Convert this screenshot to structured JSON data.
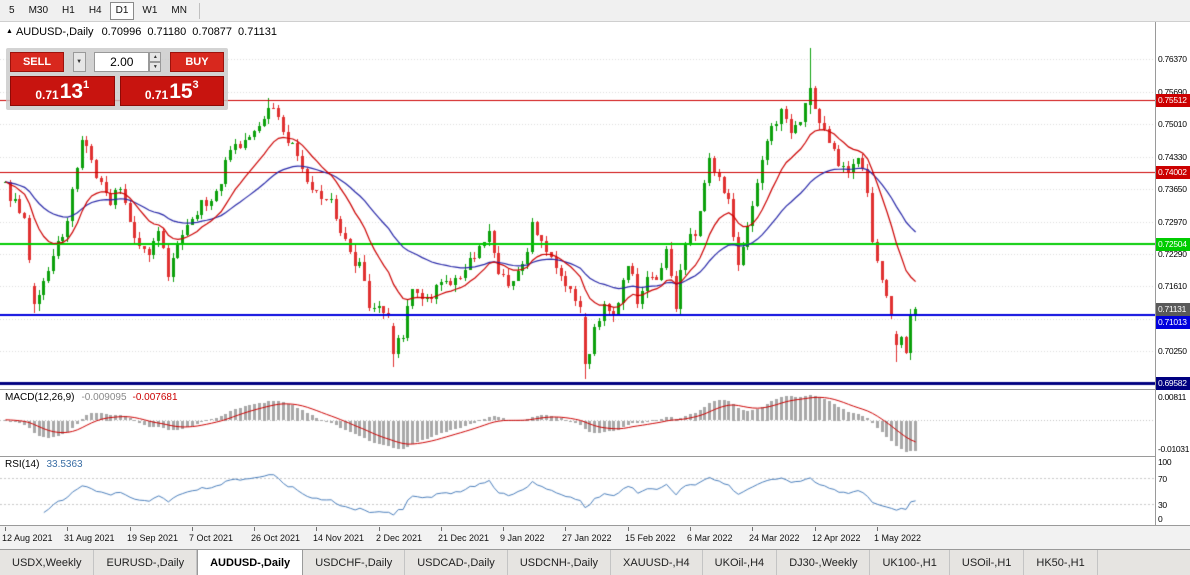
{
  "toolbar": {
    "timeframes": [
      {
        "label": "5",
        "active": false
      },
      {
        "label": "M30",
        "active": false
      },
      {
        "label": "H1",
        "active": false
      },
      {
        "label": "H4",
        "active": false
      },
      {
        "label": "D1",
        "active": true
      },
      {
        "label": "W1",
        "active": false
      },
      {
        "label": "MN",
        "active": false
      }
    ]
  },
  "icons": {
    "symbol_marker": "▲",
    "dropdown_arrow": "▼",
    "spinner_up": "▲",
    "spinner_down": "▼"
  },
  "chart": {
    "title": {
      "name": "AUDUSD-,Daily",
      "open": "0.70996",
      "high": "0.71180",
      "low": "0.70877",
      "close": "0.71131"
    },
    "trade_widget": {
      "sell_label": "SELL",
      "buy_label": "BUY",
      "volume": "2.00",
      "sell_price": {
        "prefix": "0.71",
        "big": "13",
        "sup": "1"
      },
      "buy_price": {
        "prefix": "0.71",
        "big": "15",
        "sup": "3"
      }
    }
  },
  "chart_data": {
    "type": "candlestick",
    "symbol": "AUDUSD",
    "period": "Daily",
    "last_candle": {
      "open": 0.70996,
      "high": 0.7118,
      "low": 0.70877,
      "close": 0.71131
    },
    "num_candles": 191,
    "price_range": {
      "top": 0.77146,
      "bottom": 0.69464
    },
    "price_axis_labels": [
      "0.76370",
      "0.75690",
      "0.75010",
      "0.74330",
      "0.73650",
      "0.72970",
      "0.72290",
      "0.71610",
      "0.70930",
      "0.70250",
      "0.69570"
    ],
    "dates": [
      "12 Aug 2021",
      "31 Aug 2021",
      "19 Sep 2021",
      "7 Oct 2021",
      "26 Oct 2021",
      "14 Nov 2021",
      "2 Dec 2021",
      "21 Dec 2021",
      "9 Jan 2022",
      "27 Jan 2022",
      "15 Feb 2022",
      "6 Mar 2022",
      "24 Mar 2022",
      "12 Apr 2022",
      "1 May 2022"
    ],
    "hlines": [
      {
        "price": 0.75512,
        "label": "0.75512",
        "color": "#cc0000",
        "width": 1
      },
      {
        "price": 0.74002,
        "label": "0.74002",
        "color": "#cc0000",
        "width": 1
      },
      {
        "price": 0.72504,
        "label": "0.72504",
        "color": "#00cc00",
        "width": 2
      },
      {
        "price": 0.71013,
        "label": "0.71013",
        "color": "#0000dd",
        "width": 2
      },
      {
        "price": 0.69582,
        "label": "0.69582",
        "color": "#000080",
        "width": 3
      }
    ],
    "current_price_badge": {
      "label": "0.71131",
      "color": "#5a5a5a"
    },
    "colors": {
      "up": "#0ca00c",
      "down": "#e03131"
    },
    "moving_averages": [
      {
        "period": 13,
        "color": "#cc0000"
      },
      {
        "period": 34,
        "color": "#2727a8"
      }
    ],
    "macd": {
      "label": "MACD(12,26,9)",
      "main_value": "-0.009095",
      "signal_value": "-0.007681",
      "fast": 12,
      "slow": 26,
      "signal_period": 9,
      "hist_color": "#a8a8a8",
      "signal_color": "#cc0000",
      "axis_top_label": "0.00811",
      "axis_bottom_label": "-0.01031"
    },
    "rsi": {
      "label": "RSI(14)",
      "value": "33.5363",
      "period": 14,
      "color": "#4a7ebb",
      "levels": [
        100,
        70,
        30,
        0
      ]
    },
    "price_anchors": [
      [
        0,
        0.7368
      ],
      [
        2,
        0.7332
      ],
      [
        4,
        0.73
      ],
      [
        6,
        0.7125
      ],
      [
        7,
        0.715
      ],
      [
        9,
        0.72
      ],
      [
        11,
        0.7248
      ],
      [
        13,
        0.7305
      ],
      [
        16,
        0.7462
      ],
      [
        18,
        0.7428
      ],
      [
        20,
        0.737
      ],
      [
        22,
        0.7342
      ],
      [
        24,
        0.7368
      ],
      [
        26,
        0.7295
      ],
      [
        28,
        0.725
      ],
      [
        30,
        0.7232
      ],
      [
        32,
        0.7268
      ],
      [
        34,
        0.7192
      ],
      [
        36,
        0.7262
      ],
      [
        38,
        0.7292
      ],
      [
        40,
        0.7315
      ],
      [
        42,
        0.7342
      ],
      [
        44,
        0.7355
      ],
      [
        46,
        0.742
      ],
      [
        48,
        0.7448
      ],
      [
        50,
        0.7472
      ],
      [
        52,
        0.749
      ],
      [
        55,
        0.7535
      ],
      [
        57,
        0.7512
      ],
      [
        60,
        0.7452
      ],
      [
        62,
        0.74
      ],
      [
        64,
        0.737
      ],
      [
        66,
        0.7332
      ],
      [
        68,
        0.7348
      ],
      [
        70,
        0.7282
      ],
      [
        72,
        0.7228
      ],
      [
        74,
        0.72
      ],
      [
        76,
        0.7122
      ],
      [
        78,
        0.713
      ],
      [
        80,
        0.7092
      ],
      [
        81,
        0.702
      ],
      [
        83,
        0.7062
      ],
      [
        85,
        0.7155
      ],
      [
        87,
        0.7122
      ],
      [
        89,
        0.7132
      ],
      [
        91,
        0.7178
      ],
      [
        93,
        0.7155
      ],
      [
        95,
        0.7188
      ],
      [
        97,
        0.7212
      ],
      [
        99,
        0.7242
      ],
      [
        101,
        0.7272
      ],
      [
        103,
        0.7192
      ],
      [
        105,
        0.7168
      ],
      [
        107,
        0.7188
      ],
      [
        109,
        0.7225
      ],
      [
        110,
        0.729
      ],
      [
        112,
        0.7258
      ],
      [
        114,
        0.7222
      ],
      [
        116,
        0.7182
      ],
      [
        118,
        0.7152
      ],
      [
        120,
        0.7118
      ],
      [
        121,
        0.6998
      ],
      [
        123,
        0.7068
      ],
      [
        125,
        0.7132
      ],
      [
        127,
        0.7092
      ],
      [
        129,
        0.7182
      ],
      [
        130,
        0.7215
      ],
      [
        132,
        0.7138
      ],
      [
        134,
        0.7192
      ],
      [
        136,
        0.7178
      ],
      [
        138,
        0.7228
      ],
      [
        140,
        0.7122
      ],
      [
        142,
        0.7258
      ],
      [
        144,
        0.7262
      ],
      [
        146,
        0.7368
      ],
      [
        147,
        0.742
      ],
      [
        149,
        0.7382
      ],
      [
        151,
        0.7342
      ],
      [
        153,
        0.7198
      ],
      [
        155,
        0.7282
      ],
      [
        157,
        0.7382
      ],
      [
        159,
        0.7468
      ],
      [
        161,
        0.7512
      ],
      [
        162,
        0.7528
      ],
      [
        164,
        0.7482
      ],
      [
        166,
        0.7502
      ],
      [
        168,
        0.7577
      ],
      [
        170,
        0.7512
      ],
      [
        172,
        0.7455
      ],
      [
        174,
        0.7422
      ],
      [
        176,
        0.7392
      ],
      [
        178,
        0.7425
      ],
      [
        180,
        0.7368
      ],
      [
        181,
        0.7262
      ],
      [
        183,
        0.7162
      ],
      [
        185,
        0.7102
      ],
      [
        186,
        0.7038
      ],
      [
        187,
        0.7058
      ],
      [
        188,
        0.7032
      ],
      [
        189,
        0.71
      ],
      [
        190,
        0.71131
      ]
    ],
    "candle_overrides": {
      "6": [
        0.7162,
        0.7168,
        0.7106,
        0.7125
      ],
      "55": [
        0.7512,
        0.7555,
        0.7502,
        0.7535
      ],
      "81": [
        0.7078,
        0.7085,
        0.6993,
        0.702
      ],
      "121": [
        0.7098,
        0.7106,
        0.6968,
        0.6998
      ],
      "168": [
        0.754,
        0.7661,
        0.7522,
        0.7577
      ],
      "186": [
        0.7062,
        0.7068,
        0.7003,
        0.7038
      ],
      "190": [
        0.70996,
        0.7118,
        0.70877,
        0.71131
      ]
    }
  },
  "tabs": [
    {
      "label": "USDX,Weekly",
      "active": false
    },
    {
      "label": "EURUSD-,Daily",
      "active": false
    },
    {
      "label": "AUDUSD-,Daily",
      "active": true
    },
    {
      "label": "USDCHF-,Daily",
      "active": false
    },
    {
      "label": "USDCAD-,Daily",
      "active": false
    },
    {
      "label": "USDCNH-,Daily",
      "active": false
    },
    {
      "label": "XAUUSD-,H4",
      "active": false
    },
    {
      "label": "UKOil-,H4",
      "active": false
    },
    {
      "label": "DJ30-,Weekly",
      "active": false
    },
    {
      "label": "UK100-,H1",
      "active": false
    },
    {
      "label": "USOil-,H1",
      "active": false
    },
    {
      "label": "HK50-,H1",
      "active": false
    }
  ]
}
